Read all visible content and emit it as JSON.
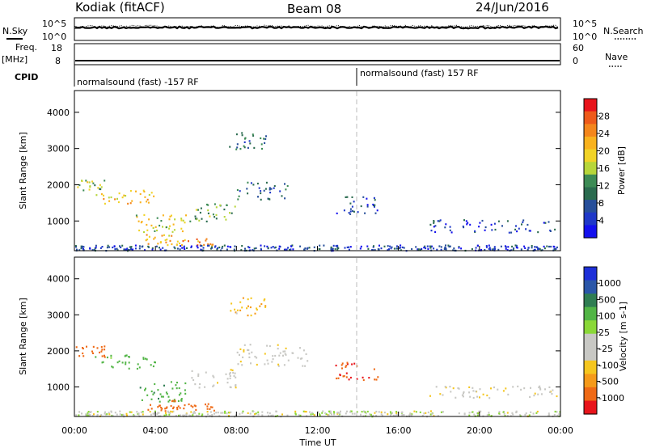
{
  "header": {
    "station": "Kodiak (fitACF)",
    "beam": "Beam 08",
    "date": "24/Jun/2016"
  },
  "top_panels": {
    "nsky": {
      "label": "N.Sky",
      "ticks_left": [
        "10^5",
        "10^0"
      ],
      "ticks_right": [
        "10^5",
        "10^0"
      ],
      "right_label": "N.Search"
    },
    "freq": {
      "label_line1": "Freq.",
      "label_line2": "[MHz]",
      "ticks_left": [
        "18",
        "8"
      ],
      "ticks_right": [
        "60",
        "0"
      ],
      "right_label": "Nave"
    },
    "cpid": {
      "label": "CPID",
      "modes": [
        "normalsound (fast) -157 RF",
        "normalsound (fast) 157 RF"
      ]
    }
  },
  "colorbars": {
    "power": {
      "title": "Power [dB]",
      "ticks": [
        "28",
        "24",
        "20",
        "16",
        "12",
        "8",
        "4"
      ],
      "colors": [
        "#e8141b",
        "#ee5a1a",
        "#f4861c",
        "#f9b21e",
        "#f1d327",
        "#b7d63a",
        "#3d8b55",
        "#2b6b4f",
        "#274f9a",
        "#1f38c8",
        "#1310ee"
      ]
    },
    "velocity": {
      "title": "Velocity [m s-1]",
      "ticks": [
        "1000",
        "500",
        "100",
        "25",
        "-25",
        "-100",
        "-500",
        "-1000"
      ],
      "colors": [
        "#1d2fd8",
        "#2a56a8",
        "#2f7d52",
        "#52b546",
        "#8ad838",
        "#c8c8c4",
        "#c8c8c4",
        "#f5c61f",
        "#f59a1a",
        "#ef6a16",
        "#e8141b"
      ]
    }
  },
  "chart_data": [
    {
      "type": "heatmap",
      "title": "Power",
      "ylabel": "Slant Range [km]",
      "xlabel": "",
      "xlim": [
        "00:00",
        "24:00"
      ],
      "ylim": [
        180,
        4600
      ],
      "yticks": [
        "1000",
        "2000",
        "3000",
        "4000"
      ],
      "colorbar": "Power [dB]",
      "scatter_regions": [
        {
          "t0": 0.0,
          "t1": 1.5,
          "r0": 1850,
          "r1": 2150,
          "value": 16
        },
        {
          "t0": 1.0,
          "t1": 4.0,
          "r0": 1500,
          "r1": 1900,
          "value": 20
        },
        {
          "t0": 3.0,
          "t1": 5.5,
          "r0": 600,
          "r1": 1200,
          "value": 18
        },
        {
          "t0": 3.5,
          "t1": 5.0,
          "r0": 350,
          "r1": 650,
          "value": 22
        },
        {
          "t0": 5.0,
          "t1": 7.0,
          "r0": 350,
          "r1": 550,
          "value": 24
        },
        {
          "t0": 5.5,
          "t1": 8.0,
          "r0": 1000,
          "r1": 1500,
          "value": 14
        },
        {
          "t0": 8.0,
          "t1": 10.5,
          "r0": 1600,
          "r1": 2100,
          "value": 8
        },
        {
          "t0": 7.5,
          "t1": 9.5,
          "r0": 3000,
          "r1": 3500,
          "value": 10
        },
        {
          "t0": 12.8,
          "t1": 15.0,
          "r0": 1200,
          "r1": 1700,
          "value": 7
        },
        {
          "t0": 17.5,
          "t1": 23.8,
          "r0": 700,
          "r1": 1050,
          "value": 6
        },
        {
          "t0": 0.0,
          "t1": 24.0,
          "r0": 200,
          "r1": 350,
          "value": 6
        }
      ]
    },
    {
      "type": "heatmap",
      "title": "Velocity",
      "ylabel": "Slant Range [km]",
      "xlabel": "Time UT",
      "xlim": [
        "00:00",
        "24:00"
      ],
      "ylim": [
        180,
        4600
      ],
      "xticks": [
        "00:00",
        "04:00",
        "08:00",
        "12:00",
        "16:00",
        "20:00",
        "00:00"
      ],
      "yticks": [
        "1000",
        "2000",
        "3000",
        "4000"
      ],
      "colorbar": "Velocity [m s-1]",
      "scatter_regions": [
        {
          "t0": 0.0,
          "t1": 1.5,
          "r0": 1850,
          "r1": 2150,
          "value": -150
        },
        {
          "t0": 1.0,
          "t1": 4.0,
          "r0": 1500,
          "r1": 1900,
          "value": 150
        },
        {
          "t0": 3.0,
          "t1": 5.5,
          "r0": 600,
          "r1": 1200,
          "value": 200
        },
        {
          "t0": 3.5,
          "t1": 5.0,
          "r0": 350,
          "r1": 650,
          "value": -150
        },
        {
          "t0": 5.0,
          "t1": 7.0,
          "r0": 350,
          "r1": 550,
          "value": -150
        },
        {
          "t0": 5.5,
          "t1": 8.0,
          "r0": 1000,
          "r1": 1500,
          "value": 0
        },
        {
          "t0": 8.0,
          "t1": 11.5,
          "r0": 1600,
          "r1": 2200,
          "value": 0
        },
        {
          "t0": 7.5,
          "t1": 9.5,
          "r0": 3000,
          "r1": 3500,
          "value": -60
        },
        {
          "t0": 12.8,
          "t1": 15.0,
          "r0": 1200,
          "r1": 1700,
          "value": -300
        },
        {
          "t0": 17.5,
          "t1": 23.8,
          "r0": 700,
          "r1": 1050,
          "value": 0
        },
        {
          "t0": 0.0,
          "t1": 24.0,
          "r0": 200,
          "r1": 350,
          "value": 20
        }
      ]
    }
  ]
}
